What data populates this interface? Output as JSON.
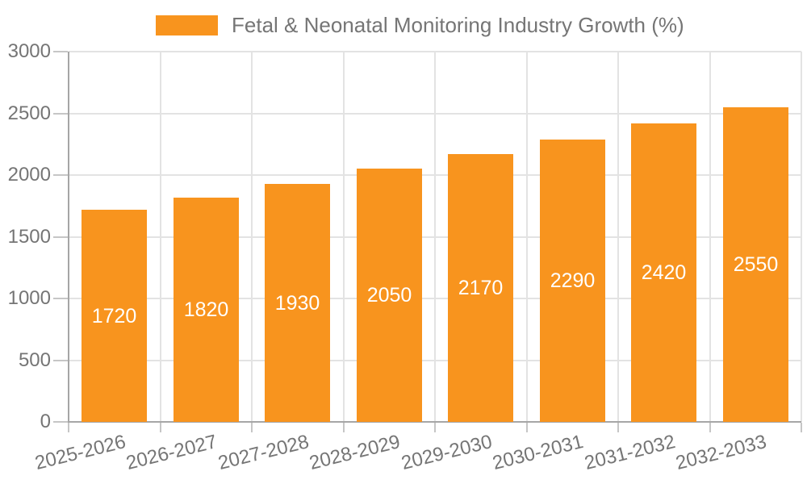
{
  "chart": {
    "legend_label": "Fetal & Neonatal Monitoring Industry Growth (%)",
    "colors": {
      "bar": "#F8941E",
      "axis": "#A6A6A6",
      "grid": "#E3E3E3",
      "tick": "#C6C6C6",
      "tick_text": "#757575",
      "value_label": "#FFFFFF",
      "background": "#FFFFFF"
    }
  },
  "chart_data": {
    "type": "bar",
    "title": "",
    "xlabel": "",
    "ylabel": "",
    "categories": [
      "2025-2026",
      "2026-2027",
      "2027-2028",
      "2028-2029",
      "2029-2030",
      "2030-2031",
      "2031-2032",
      "2032-2033"
    ],
    "series": [
      {
        "name": "Fetal & Neonatal Monitoring Industry Growth (%)",
        "values": [
          1720,
          1820,
          1930,
          2050,
          2170,
          2290,
          2420,
          2550
        ]
      }
    ],
    "bar_value_labels": [
      1720,
      1820,
      1930,
      2050,
      2170,
      2290,
      2420,
      2550
    ],
    "ylim": [
      0,
      3000
    ],
    "yticks": [
      0,
      500,
      1000,
      1500,
      2000,
      2500,
      3000
    ],
    "grid": true,
    "legend_position": "top",
    "x_label_rotation_deg": -14
  }
}
